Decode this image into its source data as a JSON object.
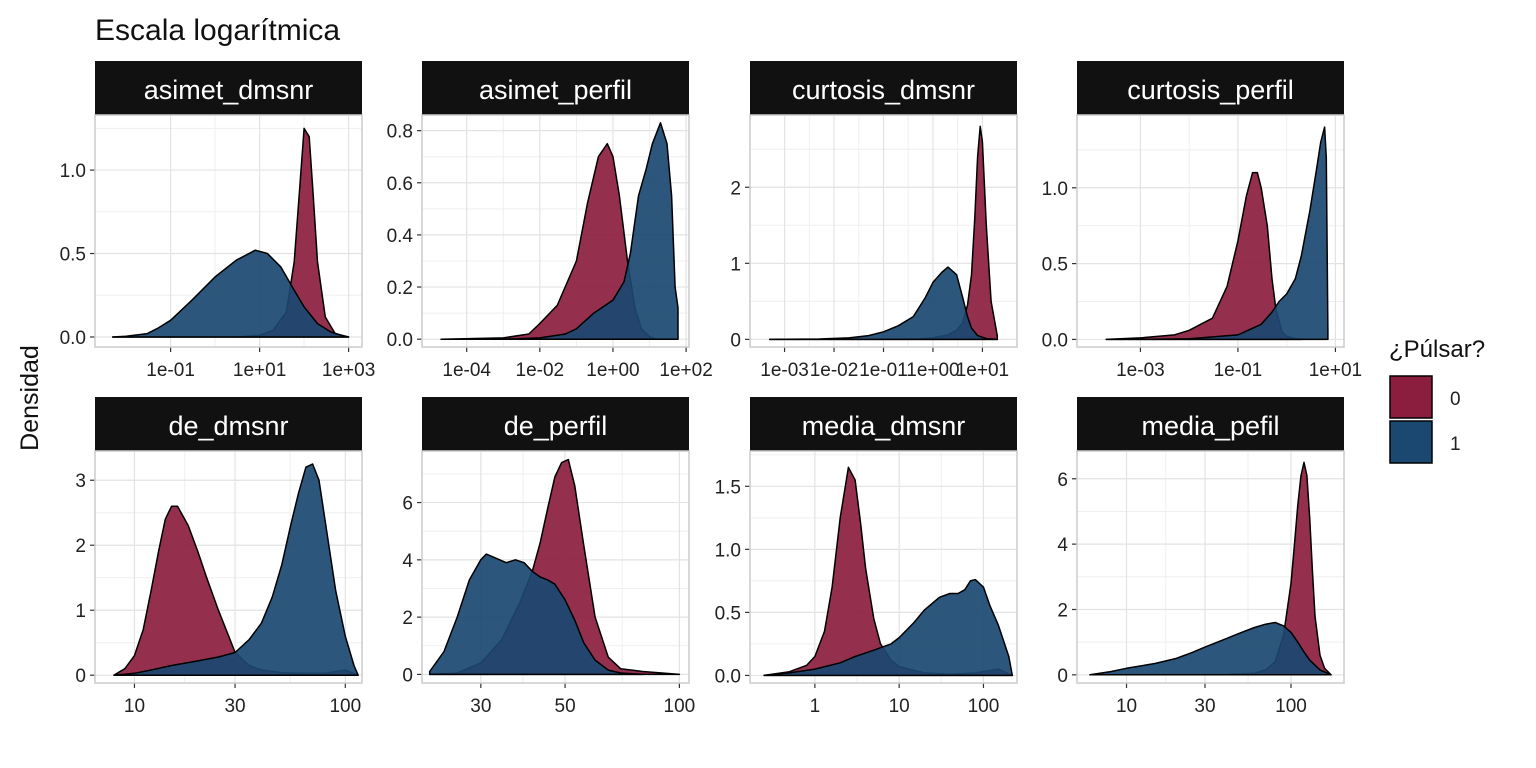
{
  "chart_data": {
    "type": "area",
    "title": "Escala logarítmica",
    "ylabel": "Densidad",
    "legend": {
      "title": "¿Púlsar?",
      "position": "right",
      "entries": [
        {
          "label": "0",
          "color": "#8b1e3f"
        },
        {
          "label": "1",
          "color": "#1a4870"
        }
      ]
    },
    "colors": {
      "0": "#8b1e3f",
      "1": "#1a4870",
      "strip_bg": "#111111",
      "grid": "#e3e3e3"
    },
    "panels": [
      {
        "title": "asimet_dmsnr",
        "xscale": "log10",
        "xlim": [
          0.002,
          2000
        ],
        "ylim": [
          -0.06,
          1.33
        ],
        "xticks": [
          {
            "v": 0.1,
            "l": "1e-01"
          },
          {
            "v": 10,
            "l": "1e+01"
          },
          {
            "v": 1000,
            "l": "1e+03"
          }
        ],
        "yticks": [
          {
            "v": 0,
            "l": "0.0"
          },
          {
            "v": 0.5,
            "l": "0.5"
          },
          {
            "v": 1,
            "l": "1.0"
          }
        ],
        "series": [
          {
            "name": "0",
            "x": [
              0.005,
              0.01,
              0.05,
              0.1,
              0.3,
              1,
              3,
              10,
              20,
              40,
              60,
              80,
              100,
              130,
              160,
              200,
              300,
              500,
              1000
            ],
            "y": [
              0,
              0,
              0,
              0,
              0,
              0,
              0,
              0.01,
              0.04,
              0.15,
              0.45,
              0.9,
              1.25,
              1.2,
              0.85,
              0.45,
              0.12,
              0.02,
              0
            ]
          },
          {
            "name": "1",
            "x": [
              0.005,
              0.01,
              0.03,
              0.05,
              0.1,
              0.3,
              1,
              3,
              8,
              15,
              30,
              60,
              100,
              200,
              400,
              800,
              1000
            ],
            "y": [
              0,
              0.005,
              0.02,
              0.05,
              0.1,
              0.22,
              0.36,
              0.46,
              0.52,
              0.5,
              0.42,
              0.28,
              0.18,
              0.08,
              0.03,
              0.005,
              0
            ]
          }
        ]
      },
      {
        "title": "asimet_perfil",
        "xscale": "log10",
        "xlim": [
          6e-06,
          120
        ],
        "ylim": [
          -0.03,
          0.86
        ],
        "xticks": [
          {
            "v": 0.0001,
            "l": "1e-04"
          },
          {
            "v": 0.01,
            "l": "1e-02"
          },
          {
            "v": 1,
            "l": "1e+00"
          },
          {
            "v": 100,
            "l": "1e+02"
          }
        ],
        "yticks": [
          {
            "v": 0,
            "l": "0.0"
          },
          {
            "v": 0.2,
            "l": "0.2"
          },
          {
            "v": 0.4,
            "l": "0.4"
          },
          {
            "v": 0.6,
            "l": "0.6"
          },
          {
            "v": 0.8,
            "l": "0.8"
          }
        ],
        "series": [
          {
            "name": "0",
            "x": [
              2e-05,
              0.001,
              0.005,
              0.01,
              0.03,
              0.1,
              0.2,
              0.4,
              0.7,
              1,
              1.5,
              2.5,
              4,
              6,
              10,
              15,
              20
            ],
            "y": [
              0,
              0.005,
              0.02,
              0.06,
              0.13,
              0.3,
              0.52,
              0.7,
              0.75,
              0.7,
              0.55,
              0.3,
              0.12,
              0.04,
              0.01,
              0,
              0
            ]
          },
          {
            "name": "1",
            "x": [
              2e-05,
              0.001,
              0.01,
              0.05,
              0.1,
              0.3,
              1,
              2,
              3,
              5,
              8,
              12,
              20,
              30,
              40,
              50,
              60
            ],
            "y": [
              0,
              0,
              0.005,
              0.02,
              0.04,
              0.1,
              0.15,
              0.22,
              0.33,
              0.55,
              0.65,
              0.75,
              0.83,
              0.75,
              0.55,
              0.2,
              0.12
            ]
          }
        ]
      },
      {
        "title": "curtosis_dmsnr",
        "xscale": "log10",
        "xlim": [
          0.0002,
          50
        ],
        "ylim": [
          -0.1,
          2.95
        ],
        "xticks": [
          {
            "v": 0.001,
            "l": "1e-03"
          },
          {
            "v": 0.01,
            "l": "1e-02"
          },
          {
            "v": 0.1,
            "l": "1e-01"
          },
          {
            "v": 1,
            "l": "1e+00"
          },
          {
            "v": 10,
            "l": "1e+01"
          }
        ],
        "yticks": [
          {
            "v": 0,
            "l": "0"
          },
          {
            "v": 1,
            "l": "1"
          },
          {
            "v": 2,
            "l": "2"
          }
        ],
        "series": [
          {
            "name": "0",
            "x": [
              0.0005,
              0.01,
              0.1,
              0.5,
              1,
              2,
              3,
              4,
              5,
              6,
              7,
              8,
              9,
              10,
              12,
              15,
              20
            ],
            "y": [
              0,
              0,
              0,
              0.005,
              0.02,
              0.06,
              0.12,
              0.22,
              0.45,
              0.85,
              1.6,
              2.4,
              2.8,
              2.6,
              1.5,
              0.5,
              0.05
            ]
          },
          {
            "name": "1",
            "x": [
              0.0005,
              0.005,
              0.02,
              0.05,
              0.1,
              0.2,
              0.4,
              0.7,
              1,
              1.5,
              2,
              3,
              4,
              5,
              6,
              8,
              12,
              20
            ],
            "y": [
              0,
              0.005,
              0.02,
              0.05,
              0.1,
              0.18,
              0.3,
              0.55,
              0.75,
              0.88,
              0.95,
              0.85,
              0.55,
              0.3,
              0.15,
              0.05,
              0.01,
              0
            ]
          }
        ]
      },
      {
        "title": "curtosis_perfil",
        "xscale": "log10",
        "xlim": [
          5e-05,
          15
        ],
        "ylim": [
          -0.05,
          1.48
        ],
        "xticks": [
          {
            "v": 0.001,
            "l": "1e-03"
          },
          {
            "v": 0.1,
            "l": "1e-01"
          },
          {
            "v": 10,
            "l": "1e+01"
          }
        ],
        "yticks": [
          {
            "v": 0,
            "l": "0.0"
          },
          {
            "v": 0.5,
            "l": "0.5"
          },
          {
            "v": 1,
            "l": "1.0"
          }
        ],
        "series": [
          {
            "name": "0",
            "x": [
              0.0002,
              0.001,
              0.005,
              0.01,
              0.03,
              0.06,
              0.1,
              0.15,
              0.2,
              0.25,
              0.3,
              0.4,
              0.5,
              0.6,
              0.8,
              1,
              1.5,
              2
            ],
            "y": [
              0,
              0.01,
              0.03,
              0.06,
              0.14,
              0.35,
              0.65,
              0.95,
              1.1,
              1.1,
              1.0,
              0.75,
              0.4,
              0.2,
              0.05,
              0.02,
              0.005,
              0
            ]
          },
          {
            "name": "1",
            "x": [
              0.0002,
              0.001,
              0.01,
              0.1,
              0.3,
              0.5,
              0.7,
              1,
              1.5,
              2,
              3,
              4,
              5,
              6,
              6.5,
              7
            ],
            "y": [
              0,
              0,
              0.005,
              0.03,
              0.1,
              0.18,
              0.25,
              0.3,
              0.4,
              0.55,
              0.85,
              1.1,
              1.3,
              1.4,
              1.2,
              0.05
            ]
          }
        ]
      },
      {
        "title": "de_dmsnr",
        "xscale": "log10",
        "xlim": [
          6.5,
          120
        ],
        "ylim": [
          -0.12,
          3.45
        ],
        "xticks": [
          {
            "v": 10,
            "l": "10"
          },
          {
            "v": 30,
            "l": "30"
          },
          {
            "v": 100,
            "l": "100"
          }
        ],
        "yticks": [
          {
            "v": 0,
            "l": "0"
          },
          {
            "v": 1,
            "l": "1"
          },
          {
            "v": 2,
            "l": "2"
          },
          {
            "v": 3,
            "l": "3"
          }
        ],
        "series": [
          {
            "name": "0",
            "x": [
              8,
              9,
              10,
              11,
              12,
              13,
              14,
              15,
              16,
              18,
              20,
              22,
              25,
              28,
              30,
              35,
              40,
              50,
              60,
              80,
              100,
              115
            ],
            "y": [
              0,
              0.1,
              0.3,
              0.7,
              1.3,
              1.9,
              2.4,
              2.6,
              2.6,
              2.3,
              1.9,
              1.5,
              1.0,
              0.6,
              0.35,
              0.15,
              0.08,
              0.04,
              0.03,
              0.03,
              0.08,
              0
            ]
          },
          {
            "name": "1",
            "x": [
              8,
              10,
              12,
              15,
              20,
              25,
              30,
              35,
              40,
              45,
              50,
              55,
              60,
              65,
              70,
              75,
              80,
              90,
              100,
              110,
              115
            ],
            "y": [
              0,
              0.03,
              0.08,
              0.15,
              0.22,
              0.28,
              0.35,
              0.55,
              0.8,
              1.2,
              1.7,
              2.3,
              2.8,
              3.2,
              3.25,
              3.0,
              2.4,
              1.3,
              0.6,
              0.15,
              0
            ]
          }
        ]
      },
      {
        "title": "de_perfil",
        "xscale": "log10",
        "xlim": [
          21,
          106
        ],
        "ylim": [
          -0.3,
          7.8
        ],
        "xticks": [
          {
            "v": 30,
            "l": "30"
          },
          {
            "v": 50,
            "l": "50"
          },
          {
            "v": 100,
            "l": "100"
          }
        ],
        "yticks": [
          {
            "v": 0,
            "l": "0"
          },
          {
            "v": 2,
            "l": "2"
          },
          {
            "v": 4,
            "l": "4"
          },
          {
            "v": 6,
            "l": "6"
          }
        ],
        "series": [
          {
            "name": "0",
            "x": [
              22,
              26,
              30,
              34,
              38,
              41,
              43,
              45,
              47,
              49,
              51,
              53,
              56,
              60,
              65,
              70,
              80,
              90,
              100
            ],
            "y": [
              0,
              0.05,
              0.4,
              1.2,
              2.5,
              3.6,
              4.6,
              5.8,
              6.9,
              7.4,
              7.5,
              6.6,
              4.5,
              2.0,
              0.6,
              0.2,
              0.1,
              0.05,
              0
            ]
          },
          {
            "name": "1",
            "x": [
              22,
              24,
              26,
              28,
              30,
              31,
              33,
              35,
              37,
              39,
              41,
              43,
              45,
              47,
              50,
              53,
              56,
              60,
              65,
              70,
              80
            ],
            "y": [
              0.1,
              0.8,
              2.0,
              3.3,
              4.0,
              4.2,
              4.05,
              3.9,
              4.0,
              3.9,
              3.6,
              3.4,
              3.3,
              3.15,
              2.6,
              1.9,
              1.1,
              0.5,
              0.15,
              0.05,
              0
            ]
          }
        ]
      },
      {
        "title": "media_dmsnr",
        "xscale": "log10",
        "xlim": [
          0.17,
          250
        ],
        "ylim": [
          -0.06,
          1.78
        ],
        "xticks": [
          {
            "v": 1,
            "l": "1"
          },
          {
            "v": 10,
            "l": "10"
          },
          {
            "v": 100,
            "l": "100"
          }
        ],
        "yticks": [
          {
            "v": 0,
            "l": "0.0"
          },
          {
            "v": 0.5,
            "l": "0.5"
          },
          {
            "v": 1,
            "l": "1.0"
          },
          {
            "v": 1.5,
            "l": "1.5"
          }
        ],
        "series": [
          {
            "name": "0",
            "x": [
              0.25,
              0.5,
              0.8,
              1,
              1.3,
              1.6,
              2,
              2.5,
              3,
              3.5,
              4,
              5,
              6,
              8,
              10,
              15,
              20,
              40,
              80,
              150,
              220
            ],
            "y": [
              0,
              0.03,
              0.08,
              0.15,
              0.35,
              0.7,
              1.25,
              1.65,
              1.55,
              1.2,
              0.85,
              0.45,
              0.25,
              0.12,
              0.07,
              0.04,
              0.02,
              0.01,
              0.02,
              0.05,
              0
            ]
          },
          {
            "name": "1",
            "x": [
              0.25,
              0.5,
              1,
              2,
              3,
              5,
              8,
              10,
              15,
              20,
              30,
              40,
              50,
              60,
              70,
              80,
              100,
              120,
              150,
              200,
              220
            ],
            "y": [
              0,
              0.02,
              0.05,
              0.1,
              0.15,
              0.2,
              0.25,
              0.3,
              0.42,
              0.52,
              0.62,
              0.65,
              0.65,
              0.68,
              0.75,
              0.76,
              0.7,
              0.55,
              0.4,
              0.15,
              0
            ]
          }
        ]
      },
      {
        "title": "media_pefil",
        "xscale": "log10",
        "xlim": [
          5,
          210
        ],
        "ylim": [
          -0.25,
          6.85
        ],
        "xticks": [
          {
            "v": 10,
            "l": "10"
          },
          {
            "v": 30,
            "l": "30"
          },
          {
            "v": 100,
            "l": "100"
          }
        ],
        "yticks": [
          {
            "v": 0,
            "l": "0"
          },
          {
            "v": 2,
            "l": "2"
          },
          {
            "v": 4,
            "l": "4"
          },
          {
            "v": 6,
            "l": "6"
          }
        ],
        "series": [
          {
            "name": "0",
            "x": [
              6,
              20,
              40,
              60,
              70,
              80,
              90,
              100,
              105,
              110,
              115,
              120,
              125,
              130,
              135,
              140,
              150,
              160,
              175
            ],
            "y": [
              0,
              0,
              0.01,
              0.05,
              0.15,
              0.4,
              1.2,
              2.8,
              4.0,
              5.2,
              6.1,
              6.5,
              6.1,
              4.8,
              3.2,
              1.8,
              0.6,
              0.2,
              0
            ]
          },
          {
            "name": "1",
            "x": [
              6,
              8,
              10,
              15,
              20,
              25,
              30,
              40,
              50,
              60,
              70,
              80,
              90,
              100,
              110,
              120,
              130,
              150,
              175
            ],
            "y": [
              0,
              0.1,
              0.2,
              0.35,
              0.5,
              0.68,
              0.85,
              1.1,
              1.3,
              1.45,
              1.55,
              1.6,
              1.5,
              1.3,
              1.0,
              0.7,
              0.45,
              0.15,
              0
            ]
          }
        ]
      }
    ]
  }
}
